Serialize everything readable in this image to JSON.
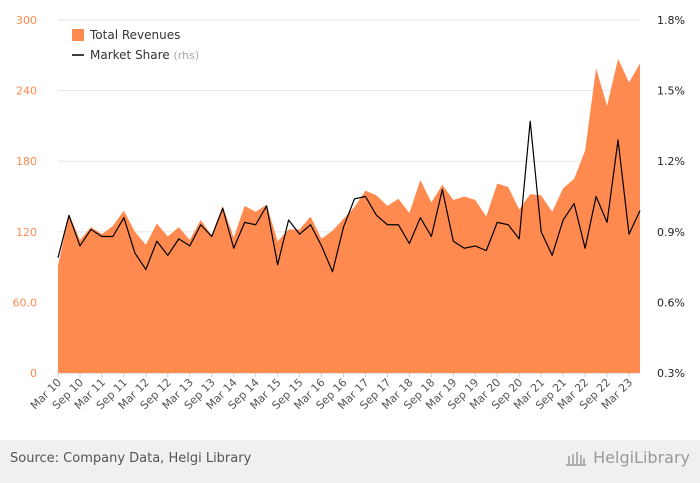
{
  "chart_data": {
    "type": "area+line",
    "title": "",
    "x": [
      "Mar 10",
      "Jun 10",
      "Sep 10",
      "Dec 10",
      "Mar 11",
      "Jun 11",
      "Sep 11",
      "Dec 11",
      "Mar 12",
      "Jun 12",
      "Sep 12",
      "Dec 12",
      "Mar 13",
      "Jun 13",
      "Sep 13",
      "Dec 13",
      "Mar 14",
      "Jun 14",
      "Sep 14",
      "Dec 14",
      "Mar 15",
      "Jun 15",
      "Sep 15",
      "Dec 15",
      "Mar 16",
      "Jun 16",
      "Sep 16",
      "Dec 16",
      "Mar 17",
      "Jun 17",
      "Sep 17",
      "Dec 17",
      "Mar 18",
      "Jun 18",
      "Sep 18",
      "Dec 18",
      "Mar 19",
      "Jun 19",
      "Sep 19",
      "Dec 19",
      "Mar 20",
      "Jun 20",
      "Sep 20",
      "Dec 20",
      "Mar 21",
      "Jun 21",
      "Sep 21",
      "Dec 21",
      "Mar 22",
      "Jun 22",
      "Sep 22",
      "Dec 22",
      "Mar 23",
      "Jun 23"
    ],
    "xtick_labels": [
      "Mar 10",
      "Sep 10",
      "Mar 11",
      "Sep 11",
      "Mar 12",
      "Sep 12",
      "Mar 13",
      "Sep 13",
      "Mar 14",
      "Sep 14",
      "Mar 15",
      "Sep 15",
      "Mar 16",
      "Sep 16",
      "Mar 17",
      "Sep 17",
      "Mar 18",
      "Sep 18",
      "Mar 19",
      "Sep 19",
      "Mar 20",
      "Sep 20",
      "Mar 21",
      "Sep 21",
      "Mar 22",
      "Sep 22",
      "Mar 23"
    ],
    "series": [
      {
        "name": "Total Revenues",
        "axis": "left",
        "kind": "area",
        "color": "#ff8a50",
        "values": [
          91,
          135,
          113,
          124,
          118,
          125,
          138,
          120,
          109,
          127,
          116,
          124,
          113,
          130,
          117,
          142,
          115,
          142,
          137,
          143,
          112,
          122,
          122,
          133,
          114,
          121,
          131,
          141,
          155,
          151,
          142,
          148,
          136,
          164,
          145,
          160,
          147,
          150,
          147,
          133,
          161,
          158,
          139,
          152,
          151,
          137,
          157,
          165,
          189,
          259,
          227,
          267,
          247,
          263
        ]
      },
      {
        "name": "Market Share",
        "name_suffix": "(rhs)",
        "axis": "right",
        "kind": "line",
        "color": "#000000",
        "values": [
          0.79,
          0.97,
          0.84,
          0.91,
          0.88,
          0.88,
          0.96,
          0.81,
          0.74,
          0.86,
          0.8,
          0.87,
          0.84,
          0.93,
          0.88,
          1.0,
          0.83,
          0.94,
          0.93,
          1.01,
          0.76,
          0.95,
          0.89,
          0.93,
          0.84,
          0.73,
          0.92,
          1.04,
          1.05,
          0.97,
          0.93,
          0.93,
          0.85,
          0.96,
          0.88,
          1.08,
          0.86,
          0.83,
          0.84,
          0.82,
          0.94,
          0.93,
          0.87,
          1.37,
          0.9,
          0.8,
          0.95,
          1.02,
          0.83,
          1.05,
          0.94,
          1.29,
          0.89,
          0.99
        ]
      }
    ],
    "y_left": {
      "ticks": [
        "0",
        "60.0",
        "120",
        "180",
        "240",
        "300"
      ],
      "lim": [
        0,
        300
      ],
      "color": "#ff8a50"
    },
    "y_right": {
      "ticks": [
        "0.3%",
        "0.6%",
        "0.9%",
        "1.2%",
        "1.5%",
        "1.8%"
      ],
      "lim": [
        0.3,
        1.8
      ],
      "color": "#222222"
    },
    "grid": true,
    "legend_placement": "top-left"
  },
  "footer": {
    "source": "Source: Company Data, Helgi Library",
    "logo_text": "HelgiLibrary"
  }
}
